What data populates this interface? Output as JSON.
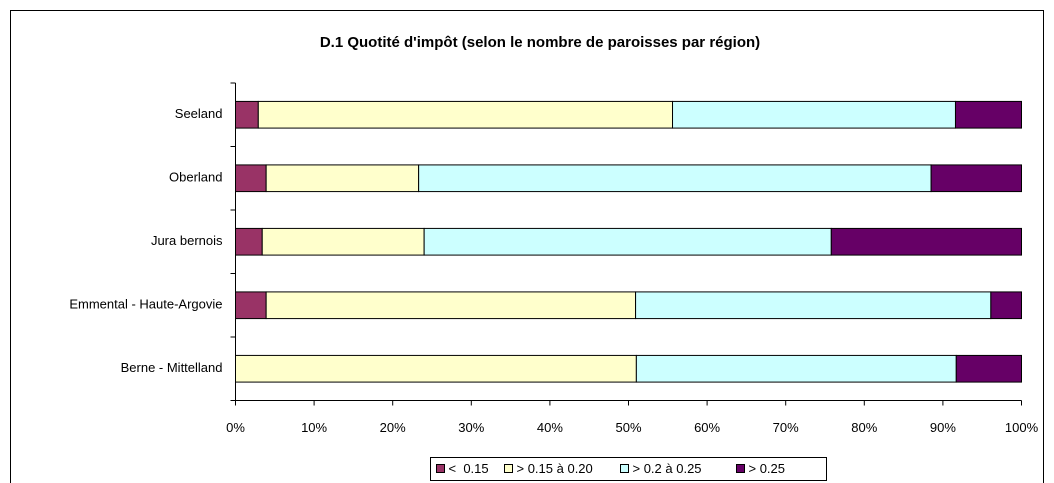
{
  "chart_data": {
    "type": "stacked_barh",
    "title": "D.1 Quotité d'impôt (selon le nombre de paroisses par région)",
    "categories": [
      "Seeland",
      "Oberland",
      "Jura bernois",
      "Emmental - Haute-Argovie",
      "Berne - Mittelland"
    ],
    "series": [
      {
        "name": "<  0.15",
        "color": "#993366",
        "values": [
          2.9,
          3.9,
          3.4,
          3.9,
          0
        ]
      },
      {
        "name": "> 0.15 à 0.20",
        "color": "#ffffcc",
        "values": [
          52.7,
          19.4,
          20.6,
          47.0,
          51.0
        ]
      },
      {
        "name": "> 0.2 à 0.25",
        "color": "#ccffff",
        "values": [
          36.0,
          65.2,
          51.8,
          45.2,
          40.7
        ]
      },
      {
        "name": "> 0.25",
        "color": "#660066",
        "values": [
          8.4,
          11.5,
          24.2,
          3.9,
          8.3
        ]
      }
    ],
    "xlim": [
      0,
      100
    ],
    "xticks": [
      {
        "value": 0,
        "label": "0%"
      },
      {
        "value": 10,
        "label": "10%"
      },
      {
        "value": 20,
        "label": "20%"
      },
      {
        "value": 30,
        "label": "30%"
      },
      {
        "value": 40,
        "label": "40%"
      },
      {
        "value": 50,
        "label": "50%"
      },
      {
        "value": 60,
        "label": "60%"
      },
      {
        "value": 70,
        "label": "70%"
      },
      {
        "value": 80,
        "label": "80%"
      },
      {
        "value": 90,
        "label": "90%"
      },
      {
        "value": 100,
        "label": "100%"
      }
    ],
    "legend": "bottom"
  }
}
